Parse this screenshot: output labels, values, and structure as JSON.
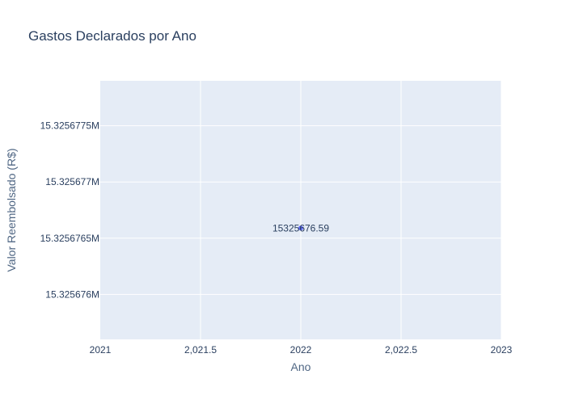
{
  "chart_data": {
    "type": "scatter",
    "title": "Gastos Declarados por Ano",
    "xlabel": "Ano",
    "ylabel": "Valor Reembolsado (R$)",
    "x": [
      2022
    ],
    "y": [
      15325676.59
    ],
    "point_labels": [
      "15325676.59"
    ],
    "xlim": [
      2021,
      2023
    ],
    "ylim": [
      15325675.6,
      15325677.9
    ],
    "x_ticks": [
      2021,
      2021.5,
      2022,
      2022.5,
      2023
    ],
    "x_tick_labels": [
      "2021",
      "2,021.5",
      "2022",
      "2,022.5",
      "2023"
    ],
    "y_ticks": [
      15325676,
      15325676.5,
      15325677,
      15325677.5
    ],
    "y_tick_labels": [
      "15.325676M",
      "15.3256765M",
      "15.325677M",
      "15.3256775M"
    ],
    "grid": true,
    "legend": "none",
    "colors": {
      "plot_background": "#e5ecf6",
      "marker": "#636efa",
      "grid": "#ffffff",
      "text": "#2a3f5f",
      "axis_title": "#506784"
    }
  }
}
